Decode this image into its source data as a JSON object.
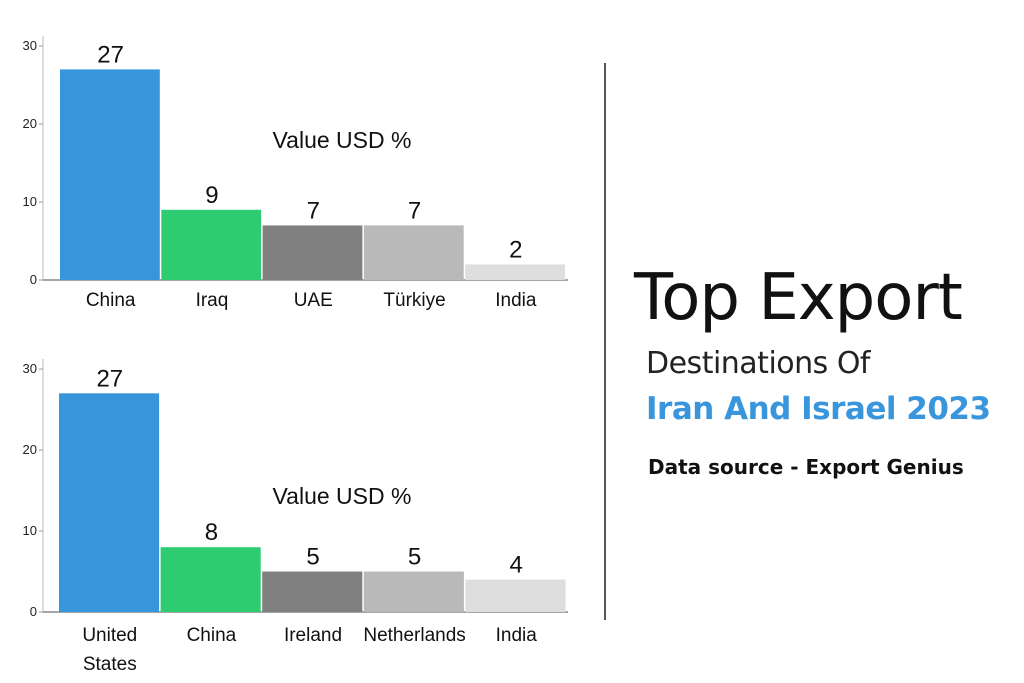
{
  "chart_data": [
    {
      "type": "bar",
      "title": "Value USD %",
      "categories": [
        "China",
        "Iraq",
        "UAE",
        "Türkiye",
        "India"
      ],
      "values": [
        27,
        9,
        7,
        7,
        2
      ],
      "ylim": [
        0,
        30
      ],
      "yticks": [
        0,
        10,
        20,
        30
      ],
      "colors": [
        "#3796db",
        "#2ecc71",
        "#808080",
        "#b9b9b9",
        "#dedede"
      ],
      "grid": false
    },
    {
      "type": "bar",
      "title": "Value USD %",
      "categories": [
        "United States",
        "China",
        "Ireland",
        "Netherlands",
        "India"
      ],
      "values": [
        27,
        8,
        5,
        5,
        4
      ],
      "ylim": [
        0,
        30
      ],
      "yticks": [
        0,
        10,
        20,
        30
      ],
      "colors": [
        "#3796db",
        "#2ecc71",
        "#808080",
        "#b9b9b9",
        "#dedede"
      ],
      "grid": false
    }
  ],
  "panel": {
    "title": "Top Export",
    "subtitle": "Destinations Of",
    "highlight": "Iran And Israel 2023",
    "source": "Data source - Export Genius"
  }
}
